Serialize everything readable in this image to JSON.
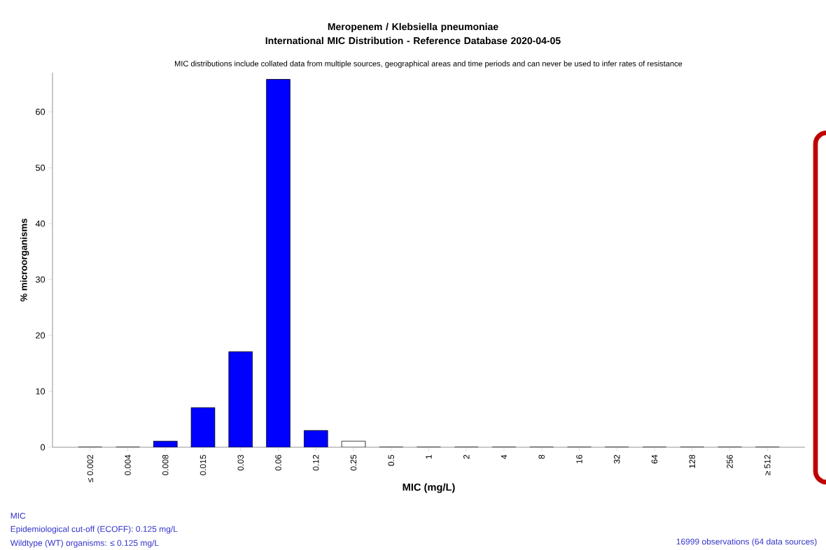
{
  "chart_data": {
    "type": "bar",
    "title": "Meropenem / Klebsiella pneumoniae\nInternational MIC Distribution - Reference Database 2020-04-05",
    "subtitle": "MIC distributions include collated data from multiple sources, geographical areas and time periods and can never be used to infer rates of resistance",
    "xlabel": "MIC (mg/L)",
    "ylabel": "% microorganisms",
    "categories": [
      "≤ 0.002",
      "0.004",
      "0.008",
      "0.015",
      "0.03",
      "0.06",
      "0.12",
      "0.25",
      "0.5",
      "1",
      "2",
      "4",
      "8",
      "16",
      "32",
      "64",
      "128",
      "256",
      "≥ 512"
    ],
    "values": [
      0,
      0,
      1.1,
      7.1,
      17.1,
      65.8,
      3.0,
      1.1,
      0,
      0,
      0,
      0,
      0,
      0,
      0,
      0,
      0,
      0,
      0
    ],
    "colors": [
      "#0000ff",
      "#0000ff",
      "#0000ff",
      "#0000ff",
      "#0000ff",
      "#0000ff",
      "#0000ff",
      "#ffffff",
      "#ffffff",
      "#ffffff",
      "#ffffff",
      "#ffffff",
      "#ffffff",
      "#ffffff",
      "#ffffff",
      "#ffffff",
      "#ffffff",
      "#ffffff",
      "#ffffff"
    ],
    "ylim": [
      0,
      67
    ],
    "yticks": [
      0,
      10,
      20,
      30,
      40,
      50,
      60
    ],
    "annotations": [
      "MIC",
      "Epidemiological cut-off (ECOFF): 0.125 mg/L",
      "Wildtype (WT) organisms: ≤ 0.125 mg/L",
      "16999 observations (64 data sources)"
    ]
  }
}
